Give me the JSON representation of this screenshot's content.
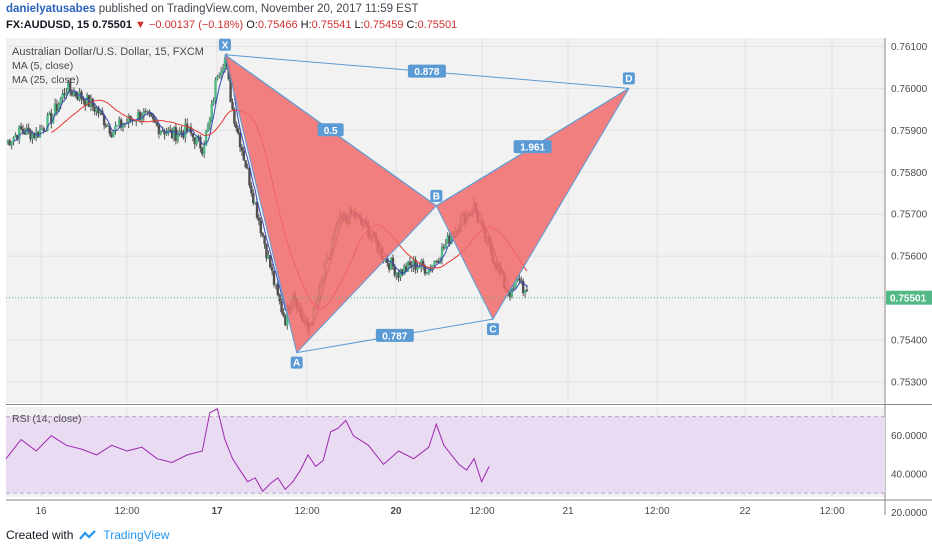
{
  "header": {
    "author": "danielyatusabes",
    "published_text": "published on TradingView.com, November 20, 2017 11:59 EST",
    "symbol": "FX:AUDUSD, 15",
    "last": "0.75501",
    "change": "−0.00137 (−0.18%)",
    "change_arrow": "▼",
    "o_label": "O:",
    "o": "0.75466",
    "h_label": "H:",
    "h": "0.75541",
    "l_label": "L:",
    "l": "0.75459",
    "c_label": "C:",
    "c": "0.75501"
  },
  "footer": {
    "created_with": "Created with",
    "brand": "TradingView"
  },
  "chart_data": [
    {
      "type": "candlestick",
      "title": "Australian Dollar/U.S. Dollar, 15, FXCM",
      "legend": [
        "MA (5, close)",
        "MA (25, close)"
      ],
      "ylim": [
        0.7525,
        0.7612
      ],
      "y_ticks": [
        "0.76100",
        "0.76000",
        "0.75900",
        "0.75800",
        "0.75700",
        "0.75600",
        "0.75400",
        "0.75300"
      ],
      "last_price_label": "0.75501",
      "x_ticks": [
        "16",
        "12:00",
        "17",
        "12:00",
        "20",
        "12:00",
        "21",
        "12:00",
        "22",
        "12:00"
      ],
      "price_path": [
        [
          0,
          0.7587
        ],
        [
          2,
          0.759
        ],
        [
          4,
          0.7589
        ],
        [
          6,
          0.7593
        ],
        [
          8,
          0.76
        ],
        [
          10,
          0.7598
        ],
        [
          12,
          0.7595
        ],
        [
          14,
          0.759
        ],
        [
          16,
          0.7592
        ],
        [
          18,
          0.7594
        ],
        [
          20,
          0.7591
        ],
        [
          22,
          0.7589
        ],
        [
          24,
          0.759
        ],
        [
          26,
          0.7586
        ],
        [
          27,
          0.7592
        ],
        [
          28,
          0.7604
        ],
        [
          29,
          0.7607
        ],
        [
          30,
          0.7595
        ],
        [
          32,
          0.758
        ],
        [
          34,
          0.7565
        ],
        [
          36,
          0.755
        ],
        [
          37,
          0.7545
        ],
        [
          38,
          0.7552
        ],
        [
          39,
          0.7546
        ],
        [
          40,
          0.7542
        ],
        [
          41,
          0.7548
        ],
        [
          42,
          0.7555
        ],
        [
          44,
          0.7568
        ],
        [
          46,
          0.757
        ],
        [
          48,
          0.7566
        ],
        [
          50,
          0.756
        ],
        [
          52,
          0.7556
        ],
        [
          54,
          0.7558
        ],
        [
          56,
          0.7557
        ],
        [
          58,
          0.7562
        ],
        [
          60,
          0.7568
        ],
        [
          62,
          0.7572
        ],
        [
          63,
          0.7566
        ],
        [
          64,
          0.7562
        ],
        [
          65,
          0.7558
        ],
        [
          66,
          0.7553
        ],
        [
          67,
          0.7551
        ],
        [
          68,
          0.7555
        ],
        [
          69,
          0.755
        ]
      ],
      "ma5_color": "#3b4cb8",
      "ma25_color": "#e53935",
      "candle_up": "#53b987",
      "candle_down": "#4e4e4e",
      "pattern": {
        "fill": "#f26b6b",
        "points": [
          {
            "name": "X",
            "x": 29,
            "y": 0.7608
          },
          {
            "name": "A",
            "x": 38.5,
            "y": 0.7537
          },
          {
            "name": "B",
            "x": 57,
            "y": 0.7572
          },
          {
            "name": "C",
            "x": 64.5,
            "y": 0.7545
          },
          {
            "name": "D",
            "x": 82.5,
            "y": 0.76
          }
        ],
        "ratios": [
          {
            "text": "0.5",
            "from": "X",
            "to": "B"
          },
          {
            "text": "0.787",
            "from": "A",
            "to": "C"
          },
          {
            "text": "1.961",
            "from": "B",
            "to": "D"
          },
          {
            "text": "0.878",
            "from": "X",
            "to": "D"
          }
        ]
      }
    },
    {
      "type": "line",
      "title": "RSI (14, close)",
      "ylim": [
        28,
        75
      ],
      "bands": [
        70,
        30
      ],
      "y_ticks": [
        "60.0000",
        "40.0000",
        "20.0000"
      ],
      "color": "#9c27b0",
      "band_fill": "#e9dcf2",
      "x": [
        0,
        2,
        4,
        6,
        8,
        10,
        12,
        14,
        16,
        18,
        20,
        22,
        24,
        26,
        27,
        28,
        29,
        30,
        31,
        32,
        33,
        34,
        35,
        36,
        37,
        38,
        39,
        40,
        41,
        42,
        43,
        44,
        45,
        46,
        48,
        50,
        52,
        54,
        56,
        57,
        58,
        59,
        60,
        61,
        62,
        63,
        64
      ],
      "values": [
        48,
        58,
        52,
        60,
        55,
        53,
        50,
        55,
        52,
        54,
        48,
        46,
        50,
        52,
        72,
        74,
        58,
        48,
        42,
        36,
        38,
        31,
        35,
        38,
        32,
        36,
        42,
        50,
        44,
        47,
        62,
        64,
        68,
        60,
        55,
        45,
        52,
        48,
        54,
        66,
        55,
        50,
        45,
        42,
        48,
        36,
        44
      ]
    }
  ]
}
